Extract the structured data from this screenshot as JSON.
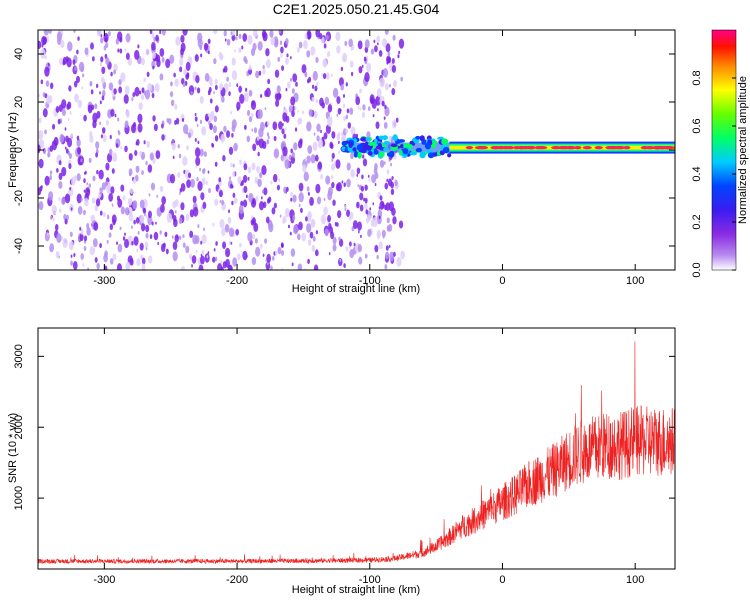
{
  "title": "C2E1.2025.050.21.45.G04",
  "colors": {
    "snr_line": "#ee2222",
    "spectrogram_dots": "#7b22e6",
    "signal_trace": "#ff2255"
  },
  "chart_data": [
    {
      "type": "heatmap",
      "xlabel": "Height of straight line (km)",
      "ylabel": "Frequency (Hz)",
      "xlim": [
        -350,
        130
      ],
      "ylim": [
        -50,
        50
      ],
      "xticks": [
        -300,
        -200,
        -100,
        0,
        100
      ],
      "yticks": [
        -40,
        -20,
        0,
        20,
        40
      ],
      "noise_region_x": [
        -350,
        -75
      ],
      "signal_trace": {
        "frequency": 1,
        "x_start": -120,
        "x_end": 130,
        "strong_from": -40
      },
      "colorbar": {
        "label": "Normalized spectral amplitude",
        "range": [
          0,
          1
        ],
        "ticks": [
          0.0,
          0.2,
          0.4,
          0.6,
          0.8
        ],
        "tick_labels": [
          "0.0",
          "0.2",
          "0.4",
          "0.6",
          "0.8"
        ],
        "colors": [
          "#ffffff",
          "#8a2be2",
          "#0000ff",
          "#00ffff",
          "#00ff00",
          "#ffff00",
          "#ff8800",
          "#ff0000",
          "#ff0088"
        ]
      },
      "grid": false
    },
    {
      "type": "line",
      "xlabel": "Height of straight line (km)",
      "ylabel": "SNR (10 * v/v)",
      "xlim": [
        -350,
        130
      ],
      "ylim": [
        0,
        3400
      ],
      "xticks": [
        -300,
        -200,
        -100,
        0,
        100
      ],
      "yticks": [
        1000,
        2000,
        3000
      ],
      "series": [
        {
          "x": [
            -350,
            -300,
            -250,
            -200,
            -150,
            -100,
            -80,
            -60,
            -50,
            -40,
            -30,
            -20,
            -10,
            0,
            10,
            20,
            30,
            40,
            50,
            60,
            70,
            80,
            90,
            100,
            110,
            120,
            130
          ],
          "values": [
            110,
            110,
            110,
            110,
            115,
            125,
            150,
            230,
            320,
            450,
            600,
            700,
            820,
            940,
            1050,
            1200,
            1300,
            1400,
            1550,
            1650,
            1700,
            1750,
            1750,
            1800,
            1800,
            1800,
            1800
          ]
        }
      ],
      "grid": false
    }
  ]
}
